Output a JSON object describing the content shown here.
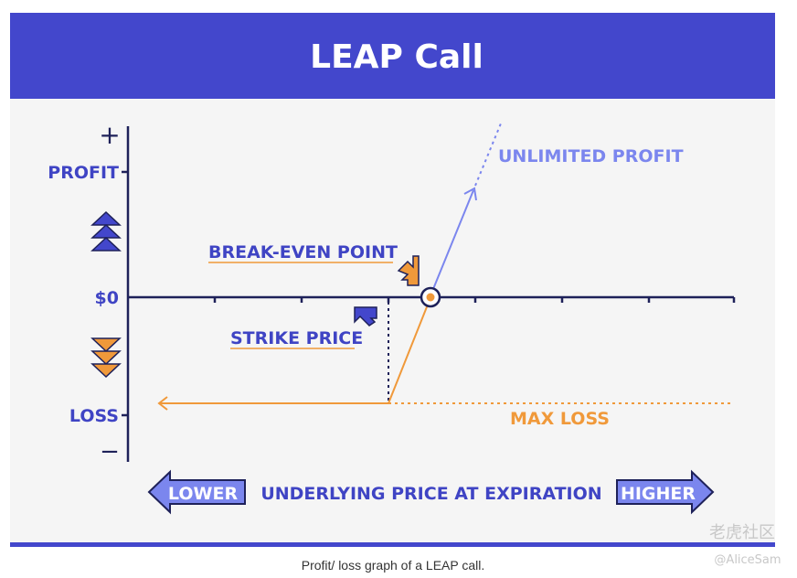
{
  "header": {
    "title": "LEAP Call"
  },
  "axis": {
    "plus": "+",
    "profit": "PROFIT",
    "zero": "$0",
    "loss": "LOSS",
    "minus": "−"
  },
  "annotations": {
    "break_even": "BREAK-EVEN POINT",
    "strike": "STRIKE PRICE",
    "unlimited_profit": "UNLIMITED PROFIT",
    "max_loss": "MAX LOSS"
  },
  "footer": {
    "lower": "LOWER",
    "label": "UNDERLYING PRICE AT EXPIRATION",
    "higher": "HIGHER"
  },
  "caption": "Profit/ loss graph of a LEAP call.",
  "watermark": {
    "site": "老虎社区",
    "user": "@AliceSam"
  }
}
